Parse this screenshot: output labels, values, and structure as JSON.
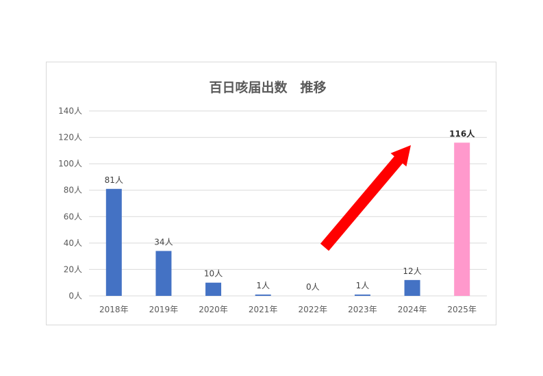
{
  "chart_data": {
    "type": "bar",
    "title": "百日咳届出数　推移",
    "xlabel": "",
    "ylabel": "",
    "categories": [
      "2018年",
      "2019年",
      "2020年",
      "2021年",
      "2022年",
      "2023年",
      "2024年",
      "2025年"
    ],
    "values": [
      81,
      34,
      10,
      1,
      0,
      1,
      12,
      116
    ],
    "data_labels": [
      "81人",
      "34人",
      "10人",
      "1人",
      "0人",
      "1人",
      "12人",
      "116人"
    ],
    "ylim": [
      0,
      140
    ],
    "yticks": [
      0,
      20,
      40,
      60,
      80,
      100,
      120,
      140
    ],
    "ytick_labels": [
      "0人",
      "20人",
      "40人",
      "60人",
      "80人",
      "100人",
      "120人",
      "140人"
    ],
    "grid": true,
    "legend": "none",
    "colors": {
      "bar": "#4472c4",
      "highlight_bar": "#ff99cc",
      "arrow": "#ff0000",
      "grid": "#d9d9d9"
    },
    "highlight_index": 7,
    "annotation": "red-upward-arrow"
  }
}
